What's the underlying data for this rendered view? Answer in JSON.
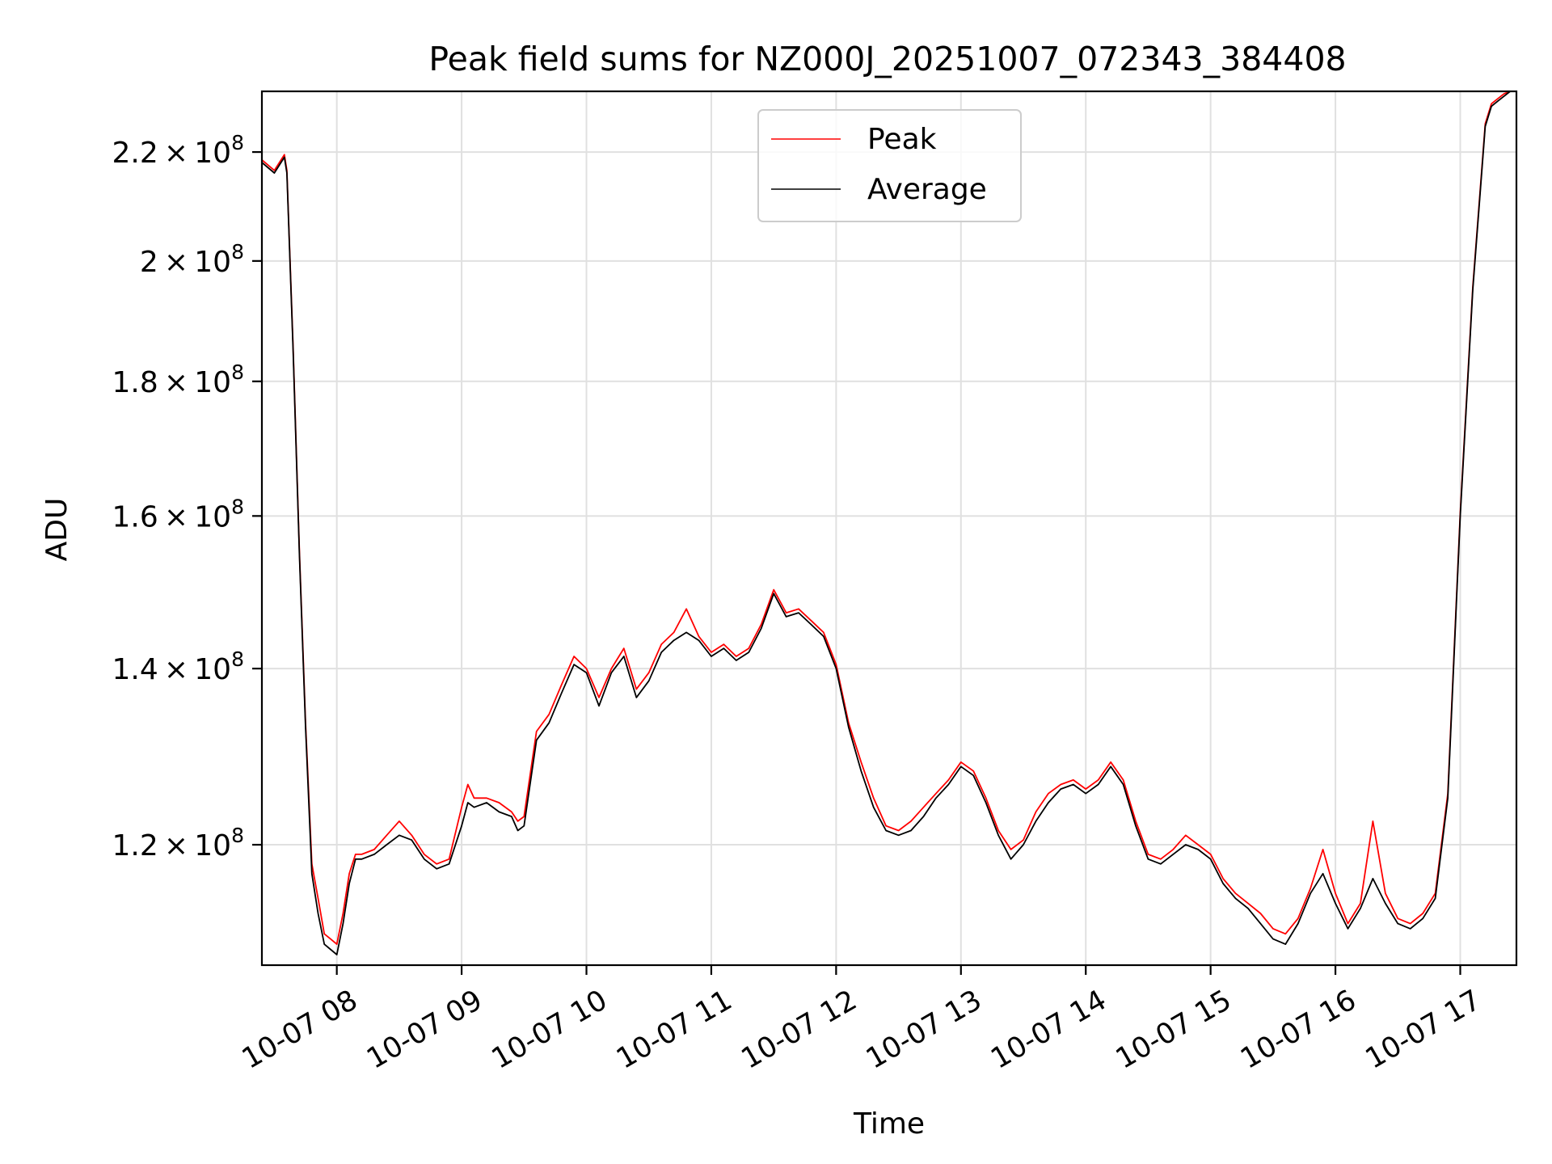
{
  "chart_data": {
    "type": "line",
    "title": "Peak field sums for NZ000J_20251007_072343_384408",
    "xlabel": "Time",
    "ylabel": "ADU",
    "y_scale": "log",
    "ylim": [
      108000000,
      232000000
    ],
    "x_unit": "hours since 2025-10-07 00:00",
    "xlim": [
      7.4,
      17.45
    ],
    "grid": true,
    "legend_position": "upper-center",
    "x_ticks": [
      {
        "value": 8,
        "label": "10-07 08"
      },
      {
        "value": 9,
        "label": "10-07 09"
      },
      {
        "value": 10,
        "label": "10-07 10"
      },
      {
        "value": 11,
        "label": "10-07 11"
      },
      {
        "value": 12,
        "label": "10-07 12"
      },
      {
        "value": 13,
        "label": "10-07 13"
      },
      {
        "value": 14,
        "label": "10-07 14"
      },
      {
        "value": 15,
        "label": "10-07 15"
      },
      {
        "value": 16,
        "label": "10-07 16"
      },
      {
        "value": 17,
        "label": "10-07 17"
      }
    ],
    "y_ticks": [
      {
        "value": 120000000,
        "mantissa": "1.2",
        "exponent": "8"
      },
      {
        "value": 140000000,
        "mantissa": "1.4",
        "exponent": "8"
      },
      {
        "value": 160000000,
        "mantissa": "1.6",
        "exponent": "8"
      },
      {
        "value": 180000000,
        "mantissa": "1.8",
        "exponent": "8"
      },
      {
        "value": 200000000,
        "mantissa": "2",
        "exponent": "8"
      },
      {
        "value": 220000000,
        "mantissa": "2.2",
        "exponent": "8"
      }
    ],
    "series": [
      {
        "name": "Average",
        "color": "#000000",
        "x": [
          7.4,
          7.5,
          7.58,
          7.6,
          7.65,
          7.7,
          7.75,
          7.8,
          7.85,
          7.9,
          7.95,
          8.0,
          8.05,
          8.1,
          8.15,
          8.2,
          8.3,
          8.4,
          8.5,
          8.6,
          8.7,
          8.8,
          8.9,
          9.0,
          9.05,
          9.1,
          9.2,
          9.3,
          9.4,
          9.45,
          9.5,
          9.6,
          9.7,
          9.8,
          9.9,
          10.0,
          10.1,
          10.2,
          10.3,
          10.4,
          10.5,
          10.6,
          10.7,
          10.8,
          10.9,
          11.0,
          11.1,
          11.2,
          11.3,
          11.4,
          11.5,
          11.6,
          11.7,
          11.8,
          11.9,
          12.0,
          12.1,
          12.2,
          12.3,
          12.4,
          12.5,
          12.6,
          12.7,
          12.8,
          12.9,
          13.0,
          13.1,
          13.2,
          13.3,
          13.4,
          13.5,
          13.6,
          13.7,
          13.8,
          13.9,
          14.0,
          14.1,
          14.2,
          14.3,
          14.4,
          14.5,
          14.6,
          14.7,
          14.8,
          14.9,
          15.0,
          15.1,
          15.2,
          15.3,
          15.4,
          15.5,
          15.6,
          15.7,
          15.8,
          15.9,
          16.0,
          16.1,
          16.2,
          16.3,
          16.4,
          16.5,
          16.6,
          16.7,
          16.8,
          16.9,
          17.0,
          17.1,
          17.2,
          17.25,
          17.3,
          17.35,
          17.4,
          17.45
        ],
        "values": [
          218000000,
          216000000,
          219000000,
          216000000,
          185000000,
          155000000,
          133000000,
          117000000,
          113000000,
          110000000,
          109500000,
          109000000,
          112000000,
          116000000,
          118500000,
          118500000,
          119000000,
          120000000,
          121000000,
          120500000,
          118500000,
          117500000,
          118000000,
          122000000,
          124500000,
          124000000,
          124500000,
          123500000,
          123000000,
          121500000,
          122000000,
          131500000,
          133500000,
          137000000,
          140500000,
          139500000,
          135500000,
          139500000,
          141500000,
          136500000,
          138500000,
          142000000,
          143500000,
          144500000,
          143500000,
          141500000,
          142500000,
          141000000,
          142000000,
          145000000,
          149500000,
          146500000,
          147000000,
          145500000,
          144000000,
          140000000,
          133000000,
          128000000,
          124000000,
          121500000,
          121000000,
          121500000,
          123000000,
          125000000,
          126500000,
          128500000,
          127500000,
          124500000,
          121000000,
          118500000,
          120000000,
          122500000,
          124500000,
          126000000,
          126500000,
          125500000,
          126500000,
          128500000,
          126500000,
          122000000,
          118500000,
          118000000,
          119000000,
          120000000,
          119500000,
          118500000,
          116000000,
          114500000,
          113500000,
          112000000,
          110500000,
          110000000,
          112000000,
          115000000,
          117000000,
          114000000,
          111500000,
          113500000,
          116500000,
          114000000,
          112000000,
          111500000,
          112500000,
          114500000,
          125000000,
          160000000,
          195000000,
          225000000,
          229000000,
          230000000,
          231000000,
          232000000,
          232000000
        ]
      },
      {
        "name": "Peak",
        "color": "#ff0000",
        "x": [
          7.4,
          7.5,
          7.58,
          7.6,
          7.65,
          7.7,
          7.75,
          7.8,
          7.85,
          7.9,
          7.95,
          8.0,
          8.05,
          8.1,
          8.15,
          8.2,
          8.3,
          8.4,
          8.5,
          8.6,
          8.7,
          8.8,
          8.9,
          9.0,
          9.05,
          9.1,
          9.2,
          9.3,
          9.4,
          9.45,
          9.5,
          9.6,
          9.7,
          9.8,
          9.9,
          10.0,
          10.1,
          10.2,
          10.3,
          10.4,
          10.5,
          10.6,
          10.7,
          10.8,
          10.9,
          11.0,
          11.1,
          11.2,
          11.3,
          11.4,
          11.5,
          11.6,
          11.7,
          11.8,
          11.9,
          12.0,
          12.1,
          12.2,
          12.3,
          12.4,
          12.5,
          12.6,
          12.7,
          12.8,
          12.9,
          13.0,
          13.1,
          13.2,
          13.3,
          13.4,
          13.5,
          13.6,
          13.7,
          13.8,
          13.9,
          14.0,
          14.1,
          14.2,
          14.3,
          14.4,
          14.5,
          14.6,
          14.7,
          14.8,
          14.9,
          15.0,
          15.1,
          15.2,
          15.3,
          15.4,
          15.5,
          15.6,
          15.7,
          15.8,
          15.9,
          16.0,
          16.1,
          16.2,
          16.3,
          16.4,
          16.5,
          16.6,
          16.7,
          16.8,
          16.9,
          17.0,
          17.1,
          17.2,
          17.25,
          17.3,
          17.35,
          17.4,
          17.45
        ],
        "values": [
          218500000,
          216500000,
          219500000,
          216500000,
          185500000,
          155500000,
          133500000,
          118000000,
          114500000,
          111000000,
          110500000,
          110000000,
          113000000,
          117000000,
          119000000,
          119000000,
          119500000,
          121000000,
          122500000,
          121000000,
          119000000,
          118000000,
          118500000,
          124000000,
          126500000,
          125000000,
          125000000,
          124500000,
          123500000,
          122500000,
          123000000,
          132500000,
          134500000,
          138000000,
          141500000,
          140000000,
          136500000,
          140000000,
          142500000,
          137500000,
          139500000,
          143000000,
          144500000,
          147500000,
          144000000,
          142000000,
          143000000,
          141500000,
          142500000,
          145500000,
          150000000,
          147000000,
          147500000,
          146000000,
          144500000,
          140500000,
          133500000,
          129000000,
          125000000,
          122000000,
          121500000,
          122500000,
          124000000,
          125500000,
          127000000,
          129000000,
          128000000,
          125000000,
          121500000,
          119500000,
          120500000,
          123500000,
          125500000,
          126500000,
          127000000,
          126000000,
          127000000,
          129000000,
          127000000,
          122500000,
          119000000,
          118500000,
          119500000,
          121000000,
          120000000,
          119000000,
          116500000,
          115000000,
          114000000,
          113000000,
          111500000,
          111000000,
          112500000,
          115500000,
          119500000,
          115000000,
          112000000,
          114000000,
          122500000,
          115000000,
          112500000,
          112000000,
          113000000,
          115000000,
          125500000,
          160500000,
          195500000,
          225500000,
          229500000,
          230500000,
          231500000,
          232000000,
          232000000
        ]
      }
    ]
  }
}
